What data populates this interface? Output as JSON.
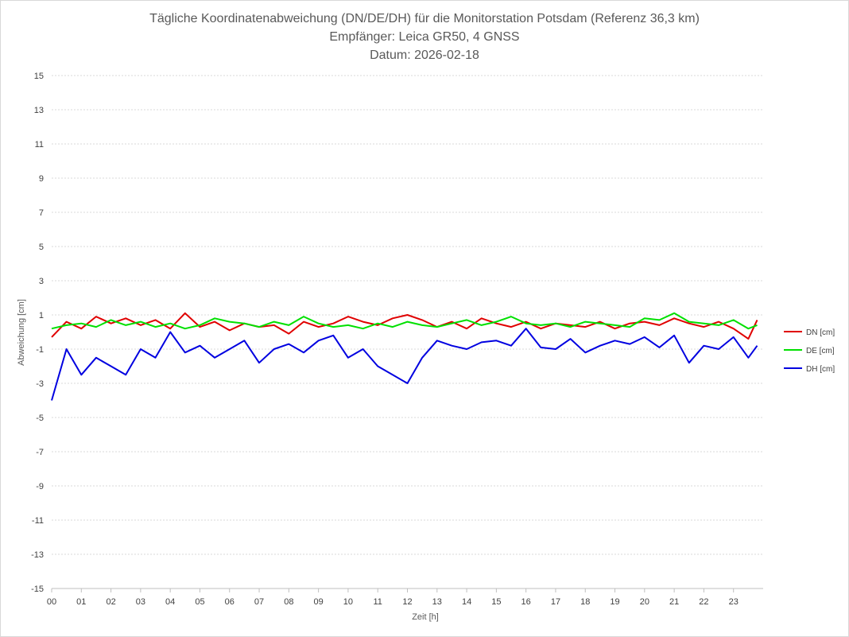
{
  "chart_data": {
    "type": "line",
    "title_lines": [
      "Tägliche Koordinatenabweichung (DN/DE/DH) für die Monitorstation Potsdam (Referenz 36,3 km)",
      "Empfänger: Leica GR50, 4 GNSS",
      "Datum: 2026-02-18"
    ],
    "xlabel": "Zeit [h]",
    "ylabel": "Abweichung [cm]",
    "xlim": [
      0,
      24
    ],
    "ylim": [
      -15,
      15
    ],
    "y_ticks": [
      15,
      13,
      11,
      9,
      7,
      5,
      3,
      1,
      -1,
      -3,
      -5,
      -7,
      -9,
      -11,
      -13,
      -15
    ],
    "x_ticks": [
      "00",
      "01",
      "02",
      "03",
      "04",
      "05",
      "06",
      "07",
      "08",
      "09",
      "10",
      "11",
      "12",
      "13",
      "14",
      "15",
      "16",
      "17",
      "18",
      "19",
      "20",
      "21",
      "22",
      "23"
    ],
    "grid": true,
    "legend_position": "right",
    "x": [
      0.0,
      0.5,
      1.0,
      1.5,
      2.0,
      2.5,
      3.0,
      3.5,
      4.0,
      4.5,
      5.0,
      5.5,
      6.0,
      6.5,
      7.0,
      7.5,
      8.0,
      8.5,
      9.0,
      9.5,
      10.0,
      10.5,
      11.0,
      11.5,
      12.0,
      12.5,
      13.0,
      13.5,
      14.0,
      14.5,
      15.0,
      15.5,
      16.0,
      16.5,
      17.0,
      17.5,
      18.0,
      18.5,
      19.0,
      19.5,
      20.0,
      20.5,
      21.0,
      21.5,
      22.0,
      22.5,
      23.0,
      23.5,
      23.8
    ],
    "series": [
      {
        "name": "DN [cm]",
        "color": "#e00000",
        "values": [
          -0.3,
          0.6,
          0.2,
          0.9,
          0.5,
          0.8,
          0.4,
          0.7,
          0.2,
          1.1,
          0.3,
          0.6,
          0.1,
          0.5,
          0.3,
          0.4,
          -0.1,
          0.6,
          0.3,
          0.5,
          0.9,
          0.6,
          0.4,
          0.8,
          1.0,
          0.7,
          0.3,
          0.6,
          0.2,
          0.8,
          0.5,
          0.3,
          0.6,
          0.2,
          0.5,
          0.4,
          0.3,
          0.6,
          0.2,
          0.5,
          0.6,
          0.4,
          0.8,
          0.5,
          0.3,
          0.6,
          0.2,
          -0.4,
          0.7
        ]
      },
      {
        "name": "DE [cm]",
        "color": "#00e000",
        "values": [
          0.2,
          0.4,
          0.5,
          0.3,
          0.7,
          0.4,
          0.6,
          0.3,
          0.5,
          0.2,
          0.4,
          0.8,
          0.6,
          0.5,
          0.3,
          0.6,
          0.4,
          0.9,
          0.5,
          0.3,
          0.4,
          0.2,
          0.5,
          0.3,
          0.6,
          0.4,
          0.3,
          0.5,
          0.7,
          0.4,
          0.6,
          0.9,
          0.5,
          0.4,
          0.5,
          0.3,
          0.6,
          0.5,
          0.4,
          0.3,
          0.8,
          0.7,
          1.1,
          0.6,
          0.5,
          0.4,
          0.7,
          0.2,
          0.4
        ]
      },
      {
        "name": "DH [cm]",
        "color": "#0000e0",
        "values": [
          -4.0,
          -1.0,
          -2.5,
          -1.5,
          -2.0,
          -2.5,
          -1.0,
          -1.5,
          0.0,
          -1.2,
          -0.8,
          -1.5,
          -1.0,
          -0.5,
          -1.8,
          -1.0,
          -0.7,
          -1.2,
          -0.5,
          -0.2,
          -1.5,
          -1.0,
          -2.0,
          -2.5,
          -3.0,
          -1.5,
          -0.5,
          -0.8,
          -1.0,
          -0.6,
          -0.5,
          -0.8,
          0.2,
          -0.9,
          -1.0,
          -0.4,
          -1.2,
          -0.8,
          -0.5,
          -0.7,
          -0.3,
          -0.9,
          -0.2,
          -1.8,
          -0.8,
          -1.0,
          -0.3,
          -1.5,
          -0.8
        ]
      }
    ]
  }
}
